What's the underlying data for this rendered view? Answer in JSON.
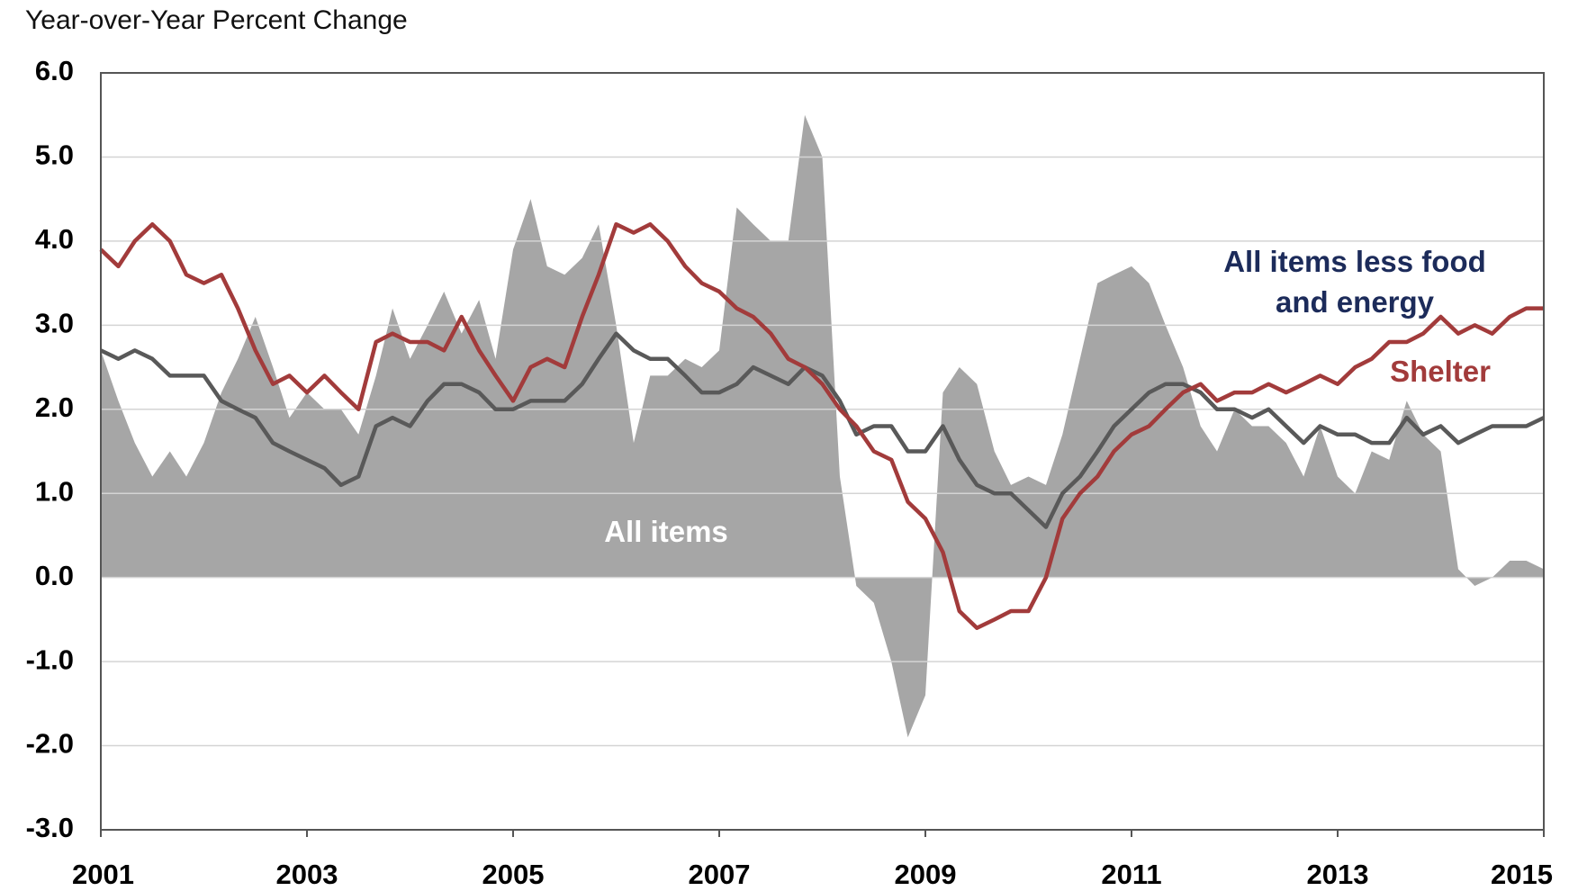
{
  "chart_data": {
    "type": "line",
    "title": "Year-over-Year Percent Change",
    "x": [
      2001,
      2001.17,
      2001.33,
      2001.5,
      2001.67,
      2001.83,
      2002,
      2002.17,
      2002.33,
      2002.5,
      2002.67,
      2002.83,
      2003,
      2003.17,
      2003.33,
      2003.5,
      2003.67,
      2003.83,
      2004,
      2004.17,
      2004.33,
      2004.5,
      2004.67,
      2004.83,
      2005,
      2005.17,
      2005.33,
      2005.5,
      2005.67,
      2005.83,
      2006,
      2006.17,
      2006.33,
      2006.5,
      2006.67,
      2006.83,
      2007,
      2007.17,
      2007.33,
      2007.5,
      2007.67,
      2007.83,
      2008,
      2008.17,
      2008.33,
      2008.5,
      2008.67,
      2008.83,
      2009,
      2009.17,
      2009.33,
      2009.5,
      2009.67,
      2009.83,
      2010,
      2010.17,
      2010.33,
      2010.5,
      2010.67,
      2010.83,
      2011,
      2011.17,
      2011.33,
      2011.5,
      2011.67,
      2011.83,
      2012,
      2012.17,
      2012.33,
      2012.5,
      2012.67,
      2012.83,
      2013,
      2013.17,
      2013.33,
      2013.5,
      2013.67,
      2013.83,
      2014,
      2014.17,
      2014.33,
      2014.5,
      2014.67,
      2014.83,
      2015
    ],
    "series": [
      {
        "name": "All items",
        "type": "area",
        "color": "#a6a6a6",
        "values": [
          2.7,
          2.1,
          1.6,
          1.2,
          1.5,
          1.2,
          1.6,
          2.2,
          2.6,
          3.1,
          2.5,
          1.9,
          2.2,
          2.0,
          2.0,
          1.7,
          2.4,
          3.2,
          2.6,
          3.0,
          3.4,
          2.9,
          3.3,
          2.6,
          3.9,
          4.5,
          3.7,
          3.6,
          3.8,
          4.2,
          3.0,
          1.6,
          2.4,
          2.4,
          2.6,
          2.5,
          2.7,
          4.4,
          4.2,
          4.0,
          4.0,
          5.5,
          5.0,
          1.2,
          -0.1,
          -0.3,
          -1.0,
          -1.9,
          -1.4,
          2.2,
          2.5,
          2.3,
          1.5,
          1.1,
          1.2,
          1.1,
          1.7,
          2.6,
          3.5,
          3.6,
          3.7,
          3.5,
          3.0,
          2.5,
          1.8,
          1.5,
          2.0,
          1.8,
          1.8,
          1.6,
          1.2,
          1.8,
          1.2,
          1.0,
          1.5,
          1.4,
          2.1,
          1.7,
          1.5,
          0.1,
          -0.1,
          0.0,
          0.2,
          0.2,
          0.1
        ]
      },
      {
        "name": "All items less food and energy",
        "type": "line",
        "color": "#595959",
        "values": [
          2.7,
          2.6,
          2.7,
          2.6,
          2.4,
          2.4,
          2.4,
          2.1,
          2.0,
          1.9,
          1.6,
          1.5,
          1.4,
          1.3,
          1.1,
          1.2,
          1.8,
          1.9,
          1.8,
          2.1,
          2.3,
          2.3,
          2.2,
          2.0,
          2.0,
          2.1,
          2.1,
          2.1,
          2.3,
          2.6,
          2.9,
          2.7,
          2.6,
          2.6,
          2.4,
          2.2,
          2.2,
          2.3,
          2.5,
          2.4,
          2.3,
          2.5,
          2.4,
          2.1,
          1.7,
          1.8,
          1.8,
          1.5,
          1.5,
          1.8,
          1.4,
          1.1,
          1.0,
          1.0,
          0.8,
          0.6,
          1.0,
          1.2,
          1.5,
          1.8,
          2.0,
          2.2,
          2.3,
          2.3,
          2.2,
          2.0,
          2.0,
          1.9,
          2.0,
          1.8,
          1.6,
          1.8,
          1.7,
          1.7,
          1.6,
          1.6,
          1.9,
          1.7,
          1.8,
          1.6,
          1.7,
          1.8,
          1.8,
          1.8,
          1.9
        ]
      },
      {
        "name": "Shelter",
        "type": "line",
        "color": "#a23b3b",
        "values": [
          3.9,
          3.7,
          4.0,
          4.2,
          4.0,
          3.6,
          3.5,
          3.6,
          3.2,
          2.7,
          2.3,
          2.4,
          2.2,
          2.4,
          2.2,
          2.0,
          2.8,
          2.9,
          2.8,
          2.8,
          2.7,
          3.1,
          2.7,
          2.4,
          2.1,
          2.5,
          2.6,
          2.5,
          3.1,
          3.6,
          4.2,
          4.1,
          4.2,
          4.0,
          3.7,
          3.5,
          3.4,
          3.2,
          3.1,
          2.9,
          2.6,
          2.5,
          2.3,
          2.0,
          1.8,
          1.5,
          1.4,
          0.9,
          0.7,
          0.3,
          -0.4,
          -0.6,
          -0.5,
          -0.4,
          -0.4,
          0.0,
          0.7,
          1.0,
          1.2,
          1.5,
          1.7,
          1.8,
          2.0,
          2.2,
          2.3,
          2.1,
          2.2,
          2.2,
          2.3,
          2.2,
          2.3,
          2.4,
          2.3,
          2.5,
          2.6,
          2.8,
          2.8,
          2.9,
          3.1,
          2.9,
          3.0,
          2.9,
          3.1,
          3.2,
          3.2
        ]
      }
    ],
    "xlim": [
      2001,
      2015
    ],
    "xticks": [
      2001,
      2003,
      2005,
      2007,
      2009,
      2011,
      2013,
      2015
    ],
    "ylim": [
      -3,
      6
    ],
    "yticks": [
      {
        "value": -3,
        "label": "-3.0"
      },
      {
        "value": -2,
        "label": "-2.0"
      },
      {
        "value": -1,
        "label": "-1.0"
      },
      {
        "value": 0,
        "label": "0.0"
      },
      {
        "value": 1,
        "label": "1.0"
      },
      {
        "value": 2,
        "label": "2.0"
      },
      {
        "value": 3,
        "label": "3.0"
      },
      {
        "value": 4,
        "label": "4.0"
      },
      {
        "value": 5,
        "label": "5.0"
      },
      {
        "value": 6,
        "label": "6.0"
      }
    ],
    "grid": true
  }
}
